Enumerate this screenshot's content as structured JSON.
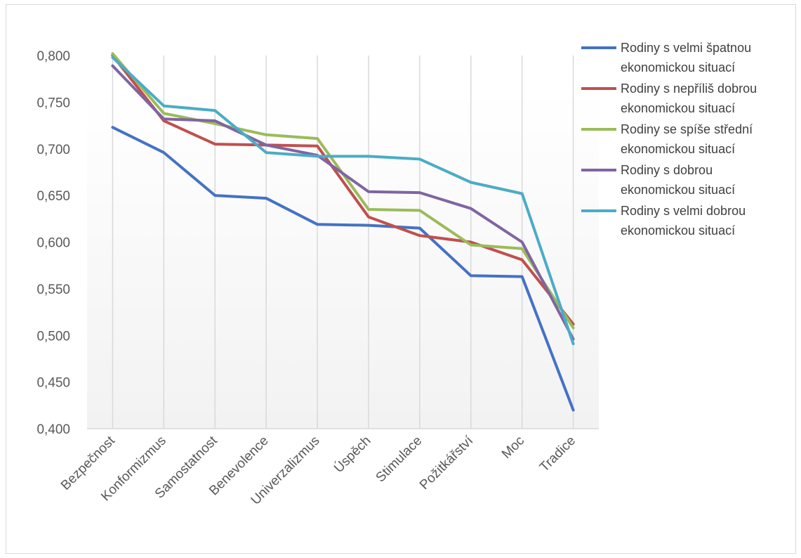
{
  "chart_data": {
    "type": "line",
    "title": "",
    "xlabel": "",
    "ylabel": "",
    "ylim": [
      0.4,
      0.8
    ],
    "ytick_step": 0.05,
    "y_tick_labels": [
      "0,400",
      "0,450",
      "0,500",
      "0,550",
      "0,600",
      "0,650",
      "0,700",
      "0,750",
      "0,800"
    ],
    "grid": "vertical lines at categories",
    "legend_position": "right",
    "categories": [
      "Bezpečnost",
      "Konformizmus",
      "Samostatnost",
      "Benevolence",
      "Univerzalizmus",
      "Úspěch",
      "Stimulace",
      "Požitkářství",
      "Moc",
      "Tradice"
    ],
    "series": [
      {
        "name": "Rodiny s velmi špatnou ekonomickou situací",
        "legend_lines": [
          "Rodiny s velmi špatnou",
          "ekonomickou situací"
        ],
        "color": "#4472c4",
        "values": [
          0.723,
          0.696,
          0.65,
          0.647,
          0.619,
          0.618,
          0.615,
          0.564,
          0.563,
          0.42
        ]
      },
      {
        "name": "Rodiny s nepříliš dobrou ekonomickou situací",
        "legend_lines": [
          "Rodiny s nepříliš dobrou",
          "ekonomickou situací"
        ],
        "color": "#c0504d",
        "values": [
          0.8,
          0.73,
          0.705,
          0.704,
          0.703,
          0.627,
          0.607,
          0.6,
          0.581,
          0.512
        ]
      },
      {
        "name": "Rodiny se spíše střední ekonomickou situací",
        "legend_lines": [
          "Rodiny se spíše střední",
          "ekonomickou situací"
        ],
        "color": "#9bbb59",
        "values": [
          0.802,
          0.738,
          0.727,
          0.715,
          0.711,
          0.635,
          0.634,
          0.597,
          0.593,
          0.508
        ]
      },
      {
        "name": "Rodiny s dobrou ekonomickou situací",
        "legend_lines": [
          "Rodiny s dobrou",
          "ekonomickou situací"
        ],
        "color": "#8064a2",
        "values": [
          0.789,
          0.732,
          0.73,
          0.704,
          0.693,
          0.654,
          0.653,
          0.636,
          0.6,
          0.496
        ]
      },
      {
        "name": "Rodiny s velmi dobrou ekonomickou situací",
        "legend_lines": [
          "Rodiny s velmi dobrou",
          "ekonomickou situací"
        ],
        "color": "#4bacc6",
        "values": [
          0.798,
          0.746,
          0.741,
          0.696,
          0.692,
          0.692,
          0.689,
          0.664,
          0.652,
          0.491
        ]
      }
    ]
  }
}
